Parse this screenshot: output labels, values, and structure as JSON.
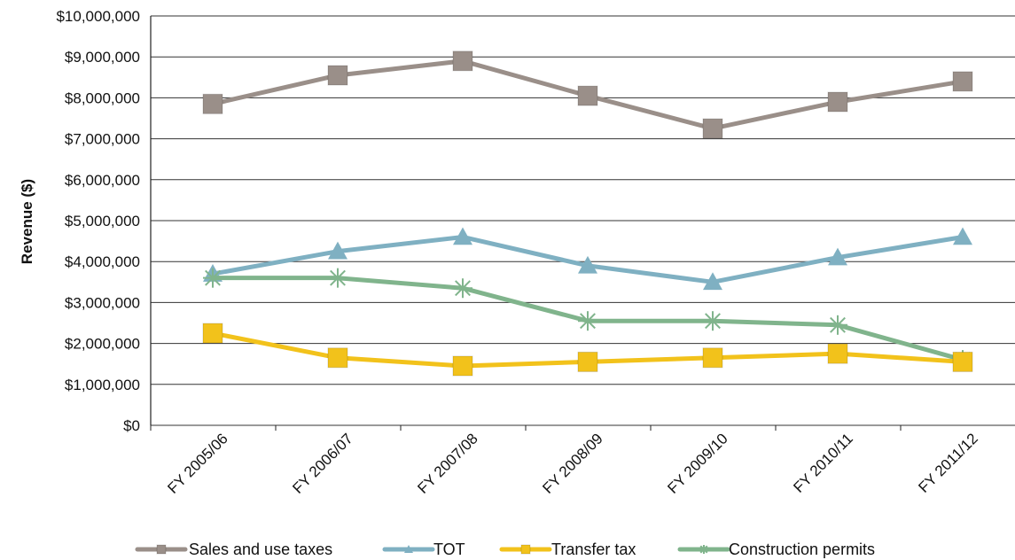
{
  "chart_data": {
    "type": "line",
    "title": "",
    "xlabel": "",
    "ylabel": "Revenue ($)",
    "categories": [
      "FY 2005/06",
      "FY 2006/07",
      "FY 2007/08",
      "FY 2008/09",
      "FY 2009/10",
      "FY 2010/11",
      "FY 2011/12"
    ],
    "y_ticks": [
      "$0",
      "$1,000,000",
      "$2,000,000",
      "$3,000,000",
      "$4,000,000",
      "$5,000,000",
      "$6,000,000",
      "$7,000,000",
      "$8,000,000",
      "$9,000,000",
      "$10,000,000"
    ],
    "ylim": [
      0,
      10000000
    ],
    "grid": true,
    "legend_position": "bottom",
    "series": [
      {
        "name": "Sales and use taxes",
        "color": "#9a8f89",
        "marker": "square",
        "values": [
          7850000,
          8550000,
          8900000,
          8050000,
          7250000,
          7900000,
          8400000
        ]
      },
      {
        "name": "TOT",
        "color": "#7fb0c2",
        "marker": "triangle",
        "values": [
          3700000,
          4250000,
          4600000,
          3900000,
          3500000,
          4100000,
          4600000
        ]
      },
      {
        "name": "Transfer tax",
        "color": "#f2c21b",
        "marker": "square",
        "values": [
          2250000,
          1650000,
          1450000,
          1550000,
          1650000,
          1750000,
          1550000
        ]
      },
      {
        "name": "Construction permits",
        "color": "#80b48c",
        "marker": "asterisk",
        "values": [
          3600000,
          3600000,
          3350000,
          2550000,
          2550000,
          2450000,
          1600000
        ]
      }
    ]
  }
}
